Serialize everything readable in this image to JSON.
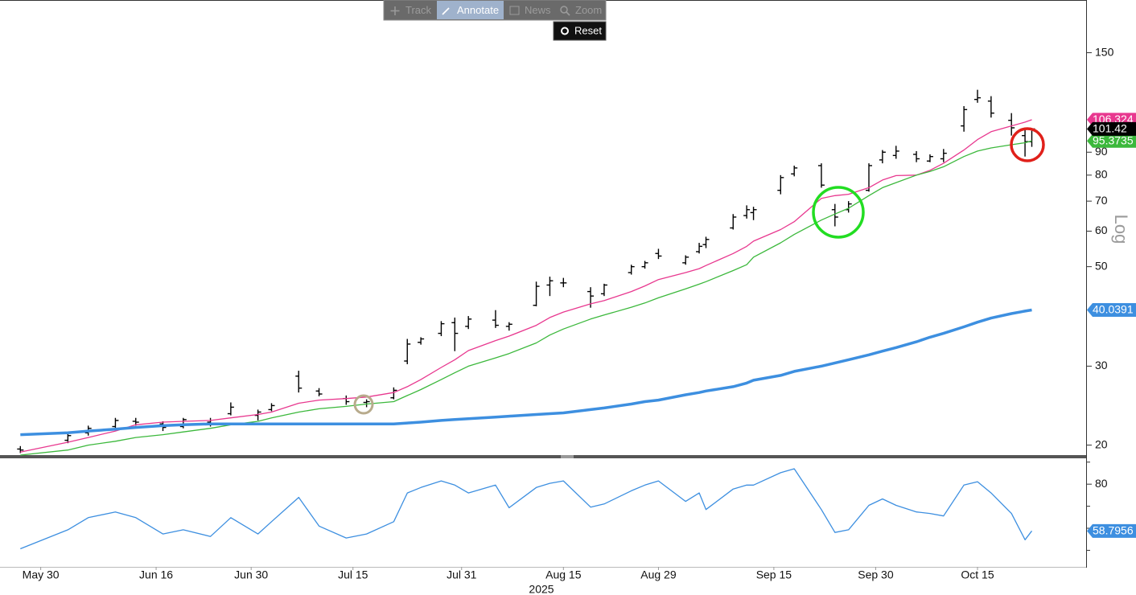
{
  "toolbar": {
    "buttons": [
      "Track",
      "Annotate",
      "News",
      "Zoom"
    ],
    "reset": "Reset"
  },
  "chart_data": [
    {
      "type": "ohlc",
      "log_scale": true,
      "scale_label": "Log",
      "grid": false,
      "xlim": [
        "2025-05-24",
        "2025-10-31"
      ],
      "ylim": [
        19,
        195
      ],
      "yticks": [
        20,
        30,
        50,
        60,
        70,
        80,
        90,
        150
      ],
      "bar_color": "#000000",
      "last_tag_color": "#000000",
      "x": [
        "2025-05-27",
        "2025-06-03",
        "2025-06-06",
        "2025-06-10",
        "2025-06-13",
        "2025-06-17",
        "2025-06-20",
        "2025-06-24",
        "2025-06-27",
        "2025-07-01",
        "2025-07-03",
        "2025-07-07",
        "2025-07-10",
        "2025-07-14",
        "2025-07-17",
        "2025-07-21",
        "2025-07-23",
        "2025-07-25",
        "2025-07-28",
        "2025-07-30",
        "2025-08-01",
        "2025-08-05",
        "2025-08-07",
        "2025-08-11",
        "2025-08-13",
        "2025-08-15",
        "2025-08-19",
        "2025-08-21",
        "2025-08-25",
        "2025-08-27",
        "2025-08-29",
        "2025-09-02",
        "2025-09-04",
        "2025-09-05",
        "2025-09-09",
        "2025-09-11",
        "2025-09-12",
        "2025-09-16",
        "2025-09-18",
        "2025-09-22",
        "2025-09-24",
        "2025-09-26",
        "2025-09-29",
        "2025-10-01",
        "2025-10-03",
        "2025-10-06",
        "2025-10-08",
        "2025-10-10",
        "2025-10-13",
        "2025-10-15",
        "2025-10-17",
        "2025-10-20",
        "2025-10-22",
        "2025-10-23"
      ],
      "open": [
        19.6,
        20.5,
        21.3,
        22.0,
        22.6,
        22.3,
        22.0,
        22.5,
        23.5,
        23.3,
        24.0,
        28.5,
        26.4,
        25.4,
        24.9,
        25.5,
        30.8,
        33.9,
        35.5,
        37.5,
        36.8,
        38.0,
        36.8,
        41.0,
        45.5,
        46.0,
        44.0,
        43.5,
        48.5,
        50.0,
        53.5,
        51.0,
        54.0,
        56.0,
        61.0,
        65.0,
        66.0,
        74.0,
        80.5,
        84.0,
        67.0,
        67.0,
        74.0,
        86.5,
        88.5,
        89.0,
        86.0,
        87.0,
        103.0,
        118.0,
        117.0,
        106.0,
        98.0,
        95.0
      ],
      "high": [
        19.9,
        21.3,
        22.1,
        23.0,
        23.0,
        22.6,
        23.0,
        23.0,
        24.9,
        24.0,
        24.8,
        29.3,
        26.8,
        25.8,
        25.3,
        26.9,
        34.5,
        34.8,
        37.8,
        38.5,
        38.8,
        40.0,
        37.6,
        46.3,
        47.5,
        47.2,
        45.0,
        45.8,
        50.5,
        51.5,
        54.8,
        53.0,
        56.5,
        58.3,
        65.5,
        68.5,
        68.0,
        80.0,
        84.0,
        85.0,
        69.0,
        70.0,
        85.0,
        91.0,
        93.0,
        90.5,
        89.0,
        91.5,
        114.0,
        124.0,
        120.0,
        110.0,
        101.5,
        100.5
      ],
      "low": [
        19.2,
        20.2,
        21.0,
        21.8,
        22.1,
        21.5,
        21.8,
        22.0,
        23.3,
        22.7,
        23.8,
        26.2,
        25.7,
        24.6,
        24.3,
        25.3,
        30.3,
        33.5,
        35.0,
        32.4,
        36.3,
        36.5,
        36.0,
        40.8,
        43.0,
        45.0,
        40.5,
        43.0,
        48.0,
        49.5,
        52.0,
        50.5,
        53.5,
        55.0,
        60.5,
        64.0,
        63.5,
        72.5,
        79.5,
        75.0,
        61.5,
        66.0,
        73.5,
        85.0,
        87.0,
        85.5,
        85.5,
        85.5,
        100.0,
        116.0,
        107.5,
        98.0,
        88.0,
        92.5
      ],
      "close": [
        19.5,
        21.0,
        21.8,
        22.7,
        22.5,
        21.9,
        22.8,
        22.3,
        24.3,
        23.7,
        24.5,
        26.8,
        26.0,
        25.0,
        25.0,
        26.5,
        33.6,
        34.5,
        37.3,
        35.5,
        38.2,
        37.0,
        37.2,
        45.2,
        46.5,
        46.0,
        43.0,
        45.5,
        50.0,
        51.0,
        52.8,
        52.5,
        55.5,
        57.5,
        64.5,
        67.0,
        67.0,
        79.0,
        83.0,
        76.0,
        64.5,
        69.0,
        84.0,
        90.0,
        90.5,
        87.0,
        88.0,
        89.5,
        112.0,
        119.0,
        110.0,
        102.0,
        95.0,
        101.42
      ],
      "series": [
        {
          "color": "#e8388f",
          "line_width": 1.3,
          "values": [
            19.3,
            20.3,
            20.8,
            21.5,
            22.2,
            22.5,
            22.6,
            22.7,
            23.0,
            23.4,
            23.7,
            24.8,
            25.2,
            25.4,
            25.6,
            26.2,
            27.0,
            28.0,
            29.8,
            31.0,
            32.5,
            34.2,
            35.0,
            37.0,
            38.5,
            39.6,
            41.3,
            42.0,
            44.0,
            45.3,
            46.8,
            48.5,
            49.5,
            50.3,
            53.5,
            55.5,
            57.0,
            60.5,
            63.0,
            71.0,
            72.0,
            72.5,
            75.0,
            78.0,
            79.8,
            80.0,
            82.0,
            85.0,
            91.0,
            96.0,
            100.0,
            103.0,
            105.0,
            106.324
          ]
        },
        {
          "color": "#3cb83c",
          "line_width": 1.3,
          "values": [
            19.0,
            19.5,
            20.0,
            20.4,
            20.8,
            21.1,
            21.4,
            21.8,
            22.2,
            22.6,
            23.0,
            23.7,
            24.1,
            24.4,
            24.7,
            25.0,
            25.8,
            26.6,
            28.0,
            29.0,
            30.0,
            31.3,
            32.0,
            33.8,
            35.2,
            36.3,
            38.2,
            39.0,
            40.6,
            41.5,
            42.6,
            44.6,
            45.7,
            46.3,
            49.0,
            50.5,
            52.5,
            56.5,
            59.0,
            63.5,
            65.5,
            67.5,
            72.0,
            75.0,
            77.0,
            80.0,
            81.5,
            83.5,
            88.0,
            90.5,
            92.0,
            93.5,
            94.5,
            95.3735
          ]
        },
        {
          "color": "#3d8fe0",
          "line_width": 3.5,
          "values": [
            21.1,
            21.3,
            21.5,
            21.7,
            21.9,
            22.1,
            22.2,
            22.3,
            22.3,
            22.3,
            22.3,
            22.3,
            22.3,
            22.3,
            22.3,
            22.3,
            22.4,
            22.5,
            22.7,
            22.8,
            22.9,
            23.1,
            23.2,
            23.4,
            23.5,
            23.6,
            24.0,
            24.2,
            24.7,
            25.0,
            25.2,
            25.9,
            26.2,
            26.4,
            27.0,
            27.5,
            27.9,
            28.6,
            29.2,
            30.0,
            30.5,
            31.0,
            31.8,
            32.4,
            33.0,
            34.0,
            34.8,
            35.5,
            36.7,
            37.6,
            38.4,
            39.3,
            39.8,
            40.0391
          ]
        }
      ]
    },
    {
      "type": "line",
      "log_scale": false,
      "xlim": [
        "2025-05-24",
        "2025-10-31"
      ],
      "ylim": [
        42.5,
        91
      ],
      "yticks": [
        80
      ],
      "y_minor_ticks": [
        50,
        60,
        70,
        90
      ],
      "xticks": [
        {
          "value": "2025-05-30",
          "label": "May 30"
        },
        {
          "value": "2025-06-16",
          "label": "Jun 16"
        },
        {
          "value": "2025-06-30",
          "label": "Jun 30"
        },
        {
          "value": "2025-07-15",
          "label": "Jul 15"
        },
        {
          "value": "2025-07-31",
          "label": "Jul 31"
        },
        {
          "value": "2025-08-15",
          "label": "Aug 15"
        },
        {
          "value": "2025-08-29",
          "label": "Aug 29"
        },
        {
          "value": "2025-09-15",
          "label": "Sep 15"
        },
        {
          "value": "2025-09-30",
          "label": "Sep 30"
        },
        {
          "value": "2025-10-15",
          "label": "Oct 15"
        }
      ],
      "xlabel": "2025",
      "x": [
        "2025-05-27",
        "2025-06-03",
        "2025-06-06",
        "2025-06-10",
        "2025-06-13",
        "2025-06-17",
        "2025-06-20",
        "2025-06-24",
        "2025-06-27",
        "2025-07-01",
        "2025-07-03",
        "2025-07-07",
        "2025-07-10",
        "2025-07-14",
        "2025-07-17",
        "2025-07-21",
        "2025-07-23",
        "2025-07-25",
        "2025-07-28",
        "2025-07-30",
        "2025-08-01",
        "2025-08-05",
        "2025-08-07",
        "2025-08-11",
        "2025-08-13",
        "2025-08-15",
        "2025-08-19",
        "2025-08-21",
        "2025-08-25",
        "2025-08-27",
        "2025-08-29",
        "2025-09-02",
        "2025-09-04",
        "2025-09-05",
        "2025-09-09",
        "2025-09-11",
        "2025-09-12",
        "2025-09-16",
        "2025-09-18",
        "2025-09-22",
        "2025-09-24",
        "2025-09-26",
        "2025-09-29",
        "2025-10-01",
        "2025-10-03",
        "2025-10-06",
        "2025-10-08",
        "2025-10-10",
        "2025-10-13",
        "2025-10-15",
        "2025-10-17",
        "2025-10-20",
        "2025-10-22",
        "2025-10-23"
      ],
      "series": [
        {
          "color": "#3d8fe0",
          "line_width": 1.3,
          "values": [
            50.7,
            59.3,
            64.8,
            67.4,
            64.8,
            57.4,
            59.3,
            56.3,
            64.8,
            57.4,
            63.0,
            74.0,
            61.0,
            55.6,
            57.4,
            63.0,
            76.0,
            78.5,
            81.5,
            79.6,
            76.0,
            79.6,
            69.3,
            78.5,
            80.4,
            81.5,
            69.6,
            71.0,
            77.0,
            79.6,
            81.5,
            72.2,
            76.0,
            68.5,
            77.8,
            79.6,
            79.6,
            85.2,
            87.0,
            68.5,
            58.1,
            59.3,
            70.4,
            73.3,
            70.4,
            67.4,
            66.7,
            65.6,
            79.6,
            81.1,
            76.0,
            66.7,
            54.8,
            58.7956
          ]
        }
      ]
    }
  ]
}
